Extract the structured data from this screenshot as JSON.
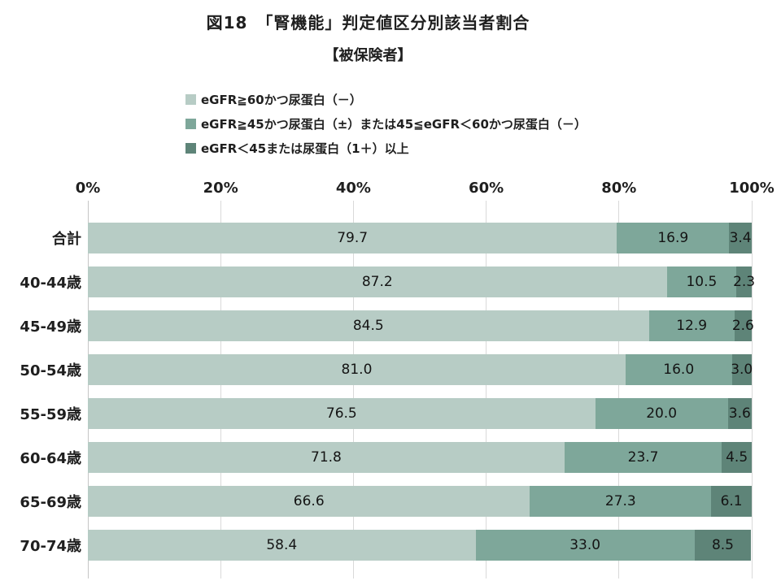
{
  "title": "図18　「腎機能」判定値区分別該当者割合",
  "subtitle": "【被保険者】",
  "legend": {
    "items": [
      {
        "label": "eGFR≧60かつ尿蛋白（－）",
        "color": "#b7ccc5"
      },
      {
        "label": "eGFR≧45かつ尿蛋白（±）または45≦eGFR＜60かつ尿蛋白（－）",
        "color": "#7ea79a"
      },
      {
        "label": "eGFR＜45または尿蛋白（1＋）以上",
        "color": "#5e8478"
      }
    ]
  },
  "axis": {
    "tick_labels": [
      "0%",
      "20%",
      "40%",
      "60%",
      "80%",
      "100%"
    ],
    "tick_values": [
      0,
      20,
      40,
      60,
      80,
      100
    ]
  },
  "colors": {
    "gridline": "#d9d9d9",
    "text": "#1f1f1f"
  },
  "chart_data": {
    "type": "bar",
    "stacked": true,
    "orientation": "horizontal",
    "title": "図18　「腎機能」判定値区分別該当者割合【被保険者】",
    "xlabel": "",
    "ylabel": "",
    "xlim": [
      0,
      100
    ],
    "unit": "%",
    "grid": true,
    "legend_position": "top-left",
    "categories": [
      "合計",
      "40-44歳",
      "45-49歳",
      "50-54歳",
      "55-59歳",
      "60-64歳",
      "65-69歳",
      "70-74歳"
    ],
    "series": [
      {
        "name": "eGFR≧60かつ尿蛋白（－）",
        "color": "#b7ccc5",
        "values": [
          79.7,
          87.2,
          84.5,
          81.0,
          76.5,
          71.8,
          66.6,
          58.4
        ]
      },
      {
        "name": "eGFR≧45かつ尿蛋白（±）または45≦eGFR＜60かつ尿蛋白（－）",
        "color": "#7ea79a",
        "values": [
          16.9,
          10.5,
          12.9,
          16.0,
          20.0,
          23.7,
          27.3,
          33.0
        ]
      },
      {
        "name": "eGFR＜45または尿蛋白（1＋）以上",
        "color": "#5e8478",
        "values": [
          3.4,
          2.3,
          2.6,
          3.0,
          3.6,
          4.5,
          6.1,
          8.5
        ]
      }
    ]
  }
}
